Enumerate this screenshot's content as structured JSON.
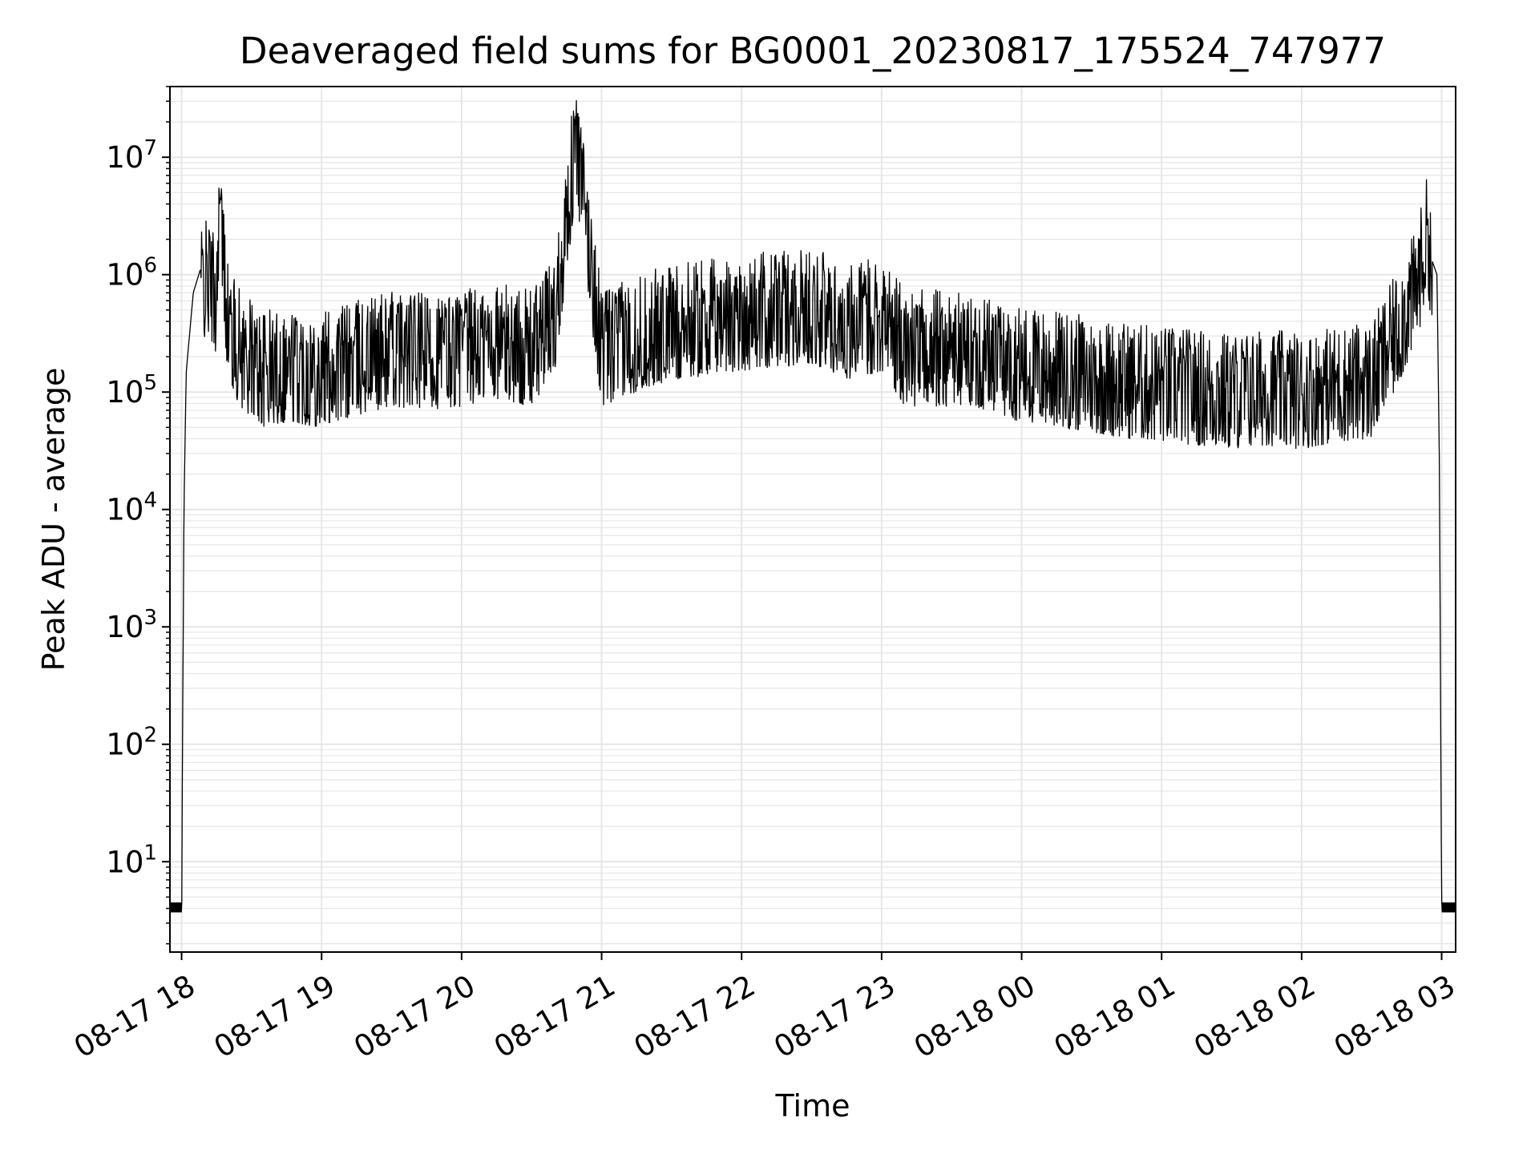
{
  "chart_data": {
    "type": "line",
    "title": "Deaveraged field sums for BG0001_20230817_175524_747977",
    "xlabel": "Time",
    "ylabel": "Peak ADU - average",
    "yscale": "log",
    "ylim": [
      1.7,
      40000000
    ],
    "xlim": [
      "08-17 17:55",
      "08-18 03:06"
    ],
    "grid": true,
    "minor_grid": true,
    "line_color": "#000000",
    "grid_color": "#e6e6e6",
    "x_ticks": [
      {
        "label": "08-17 18",
        "value": "08-17 18:00"
      },
      {
        "label": "08-17 19",
        "value": "08-17 19:00"
      },
      {
        "label": "08-17 20",
        "value": "08-17 20:00"
      },
      {
        "label": "08-17 21",
        "value": "08-17 21:00"
      },
      {
        "label": "08-17 22",
        "value": "08-17 22:00"
      },
      {
        "label": "08-17 23",
        "value": "08-17 23:00"
      },
      {
        "label": "08-18 00",
        "value": "08-18 00:00"
      },
      {
        "label": "08-18 01",
        "value": "08-18 01:00"
      },
      {
        "label": "08-18 02",
        "value": "08-18 02:00"
      },
      {
        "label": "08-18 03",
        "value": "08-18 03:00"
      }
    ],
    "y_ticks": [
      {
        "base": "10",
        "exp": "1",
        "value": 10
      },
      {
        "base": "10",
        "exp": "2",
        "value": 100
      },
      {
        "base": "10",
        "exp": "3",
        "value": 1000
      },
      {
        "base": "10",
        "exp": "4",
        "value": 10000
      },
      {
        "base": "10",
        "exp": "5",
        "value": 100000
      },
      {
        "base": "10",
        "exp": "6",
        "value": 1000000
      },
      {
        "base": "10",
        "exp": "7",
        "value": 10000000
      }
    ],
    "series": [
      {
        "x": [
          "08-17 17:55",
          "08-17 17:59",
          "08-17 18:00",
          "08-17 18:01",
          "08-17 18:02",
          "08-17 18:05",
          "08-17 18:08",
          "08-17 18:12",
          "08-17 18:15",
          "08-17 18:16",
          "08-17 18:20",
          "08-17 18:25",
          "08-17 18:35",
          "08-17 18:45",
          "08-17 19:00",
          "08-17 19:15",
          "08-17 19:30",
          "08-17 19:45",
          "08-17 20:00",
          "08-17 20:15",
          "08-17 20:30",
          "08-17 20:40",
          "08-17 20:49",
          "08-17 21:00",
          "08-17 21:15",
          "08-17 21:30",
          "08-17 21:45",
          "08-17 22:00",
          "08-17 22:15",
          "08-17 22:30",
          "08-17 22:45",
          "08-17 23:00",
          "08-17 23:10",
          "08-17 23:30",
          "08-17 23:45",
          "08-18 00:00",
          "08-18 00:15",
          "08-18 00:30",
          "08-18 00:45",
          "08-18 01:00",
          "08-18 01:15",
          "08-18 01:30",
          "08-18 01:45",
          "08-18 02:00",
          "08-18 02:15",
          "08-18 02:30",
          "08-18 02:40",
          "08-18 02:48",
          "08-18 02:50",
          "08-18 02:54",
          "08-18 02:56",
          "08-18 02:58",
          "08-18 02:59",
          "08-18 03:00",
          "08-18 03:06"
        ],
        "y": [
          4,
          4,
          4,
          10000,
          150000,
          700000,
          1100000,
          1200000,
          800000,
          5500000,
          500000,
          300000,
          200000,
          220000,
          200000,
          250000,
          300000,
          280000,
          300000,
          350000,
          300000,
          600000,
          19000000,
          300000,
          400000,
          500000,
          550000,
          600000,
          650000,
          700000,
          500000,
          600000,
          300000,
          300000,
          280000,
          220000,
          200000,
          180000,
          160000,
          150000,
          140000,
          130000,
          140000,
          130000,
          150000,
          160000,
          400000,
          900000,
          1200000,
          3000000,
          1300000,
          1000000,
          30000,
          4,
          4
        ],
        "noise_band": {
          "low_fraction": 0.25,
          "high_fraction": 2.5
        }
      }
    ]
  }
}
